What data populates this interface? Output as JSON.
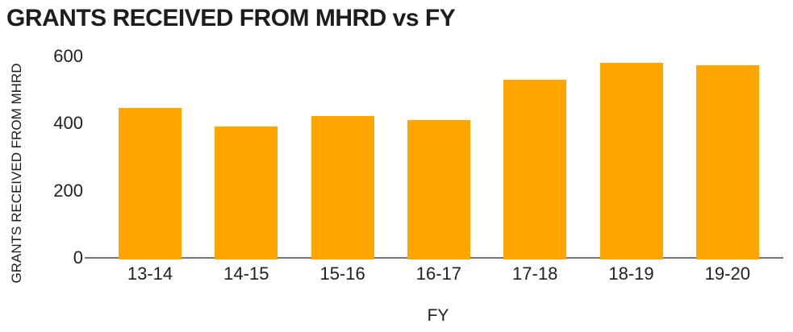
{
  "chart_data": {
    "type": "bar",
    "title": "GRANTS RECEIVED FROM MHRD vs FY",
    "xlabel": "FY",
    "ylabel": "GRANTS RECEIVED FROM MHRD",
    "categories": [
      "13-14",
      "14-15",
      "15-16",
      "16-17",
      "17-18",
      "18-19",
      "19-20"
    ],
    "values": [
      446,
      392,
      422,
      410,
      530,
      582,
      574
    ],
    "yticks": [
      0,
      200,
      400,
      600
    ],
    "ylim": [
      0,
      600
    ],
    "grid": false,
    "legend": false,
    "bar_color": "#FFA500",
    "axis_line_color": "#757575",
    "text_color": "#212121"
  }
}
